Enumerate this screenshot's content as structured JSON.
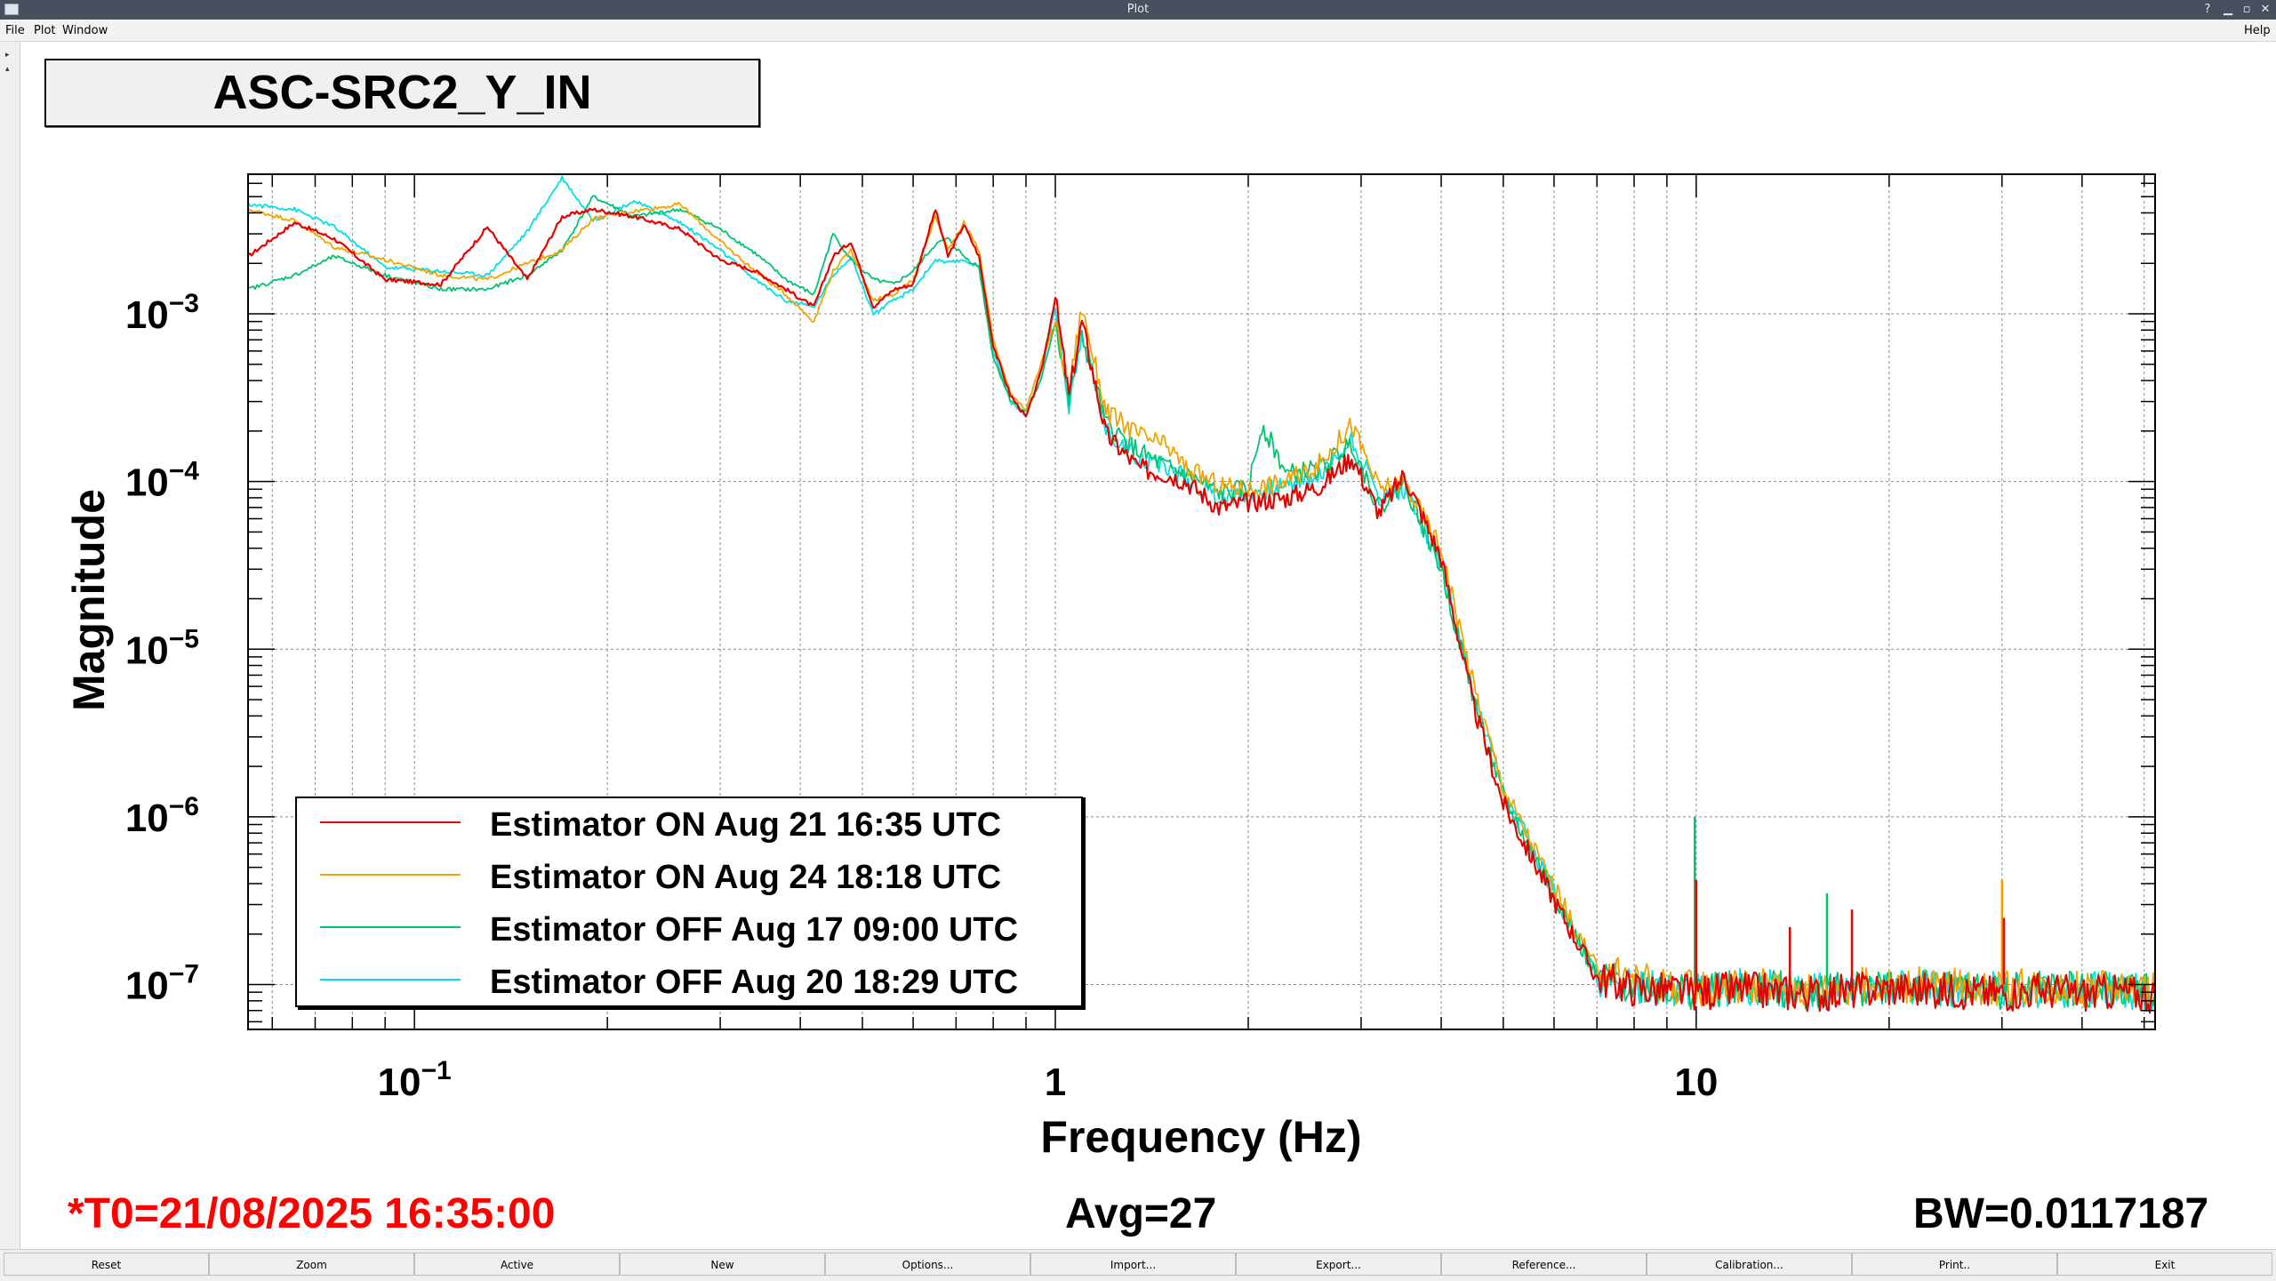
{
  "window": {
    "title": "Plot"
  },
  "menu": {
    "items": [
      "File",
      "Plot",
      "Window"
    ],
    "help": "Help"
  },
  "plot_title": "ASC-SRC2_Y_IN",
  "footer": {
    "t0": "*T0=21/08/2025 16:35:00",
    "avg": "Avg=27",
    "bw": "BW=0.0117187"
  },
  "buttons": [
    "Reset",
    "Zoom",
    "Active",
    "New",
    "Options...",
    "Import...",
    "Export...",
    "Reference...",
    "Calibration...",
    "Print..",
    "Exit"
  ],
  "colors": {
    "titlebar": "#46505e",
    "t0": "#ff0000",
    "red": "#e80000",
    "orange": "#f0a400",
    "green": "#00c470",
    "cyan": "#00e0e6"
  },
  "chart_data": {
    "type": "line",
    "xlabel": "Frequency (Hz)",
    "ylabel": "Magnitude",
    "xscale": "log",
    "yscale": "log",
    "xlim": [
      0.055,
      52
    ],
    "ylim": [
      5.4e-08,
      0.0068
    ],
    "x_ticks": [
      {
        "value": 0.1,
        "label": "10",
        "sup": "−1"
      },
      {
        "value": 1,
        "label": "1",
        "sup": ""
      },
      {
        "value": 10,
        "label": "10",
        "sup": ""
      }
    ],
    "y_ticks": [
      {
        "value": 0.001,
        "label": "10",
        "sup": "−3"
      },
      {
        "value": 0.0001,
        "label": "10",
        "sup": "−4"
      },
      {
        "value": 1e-05,
        "label": "10",
        "sup": "−5"
      },
      {
        "value": 1e-06,
        "label": "10",
        "sup": "−6"
      },
      {
        "value": 1e-07,
        "label": "10",
        "sup": "−7"
      }
    ],
    "grid": true,
    "legend": "lower-left",
    "series": [
      {
        "name": "Estimator ON Aug 21 16:35 UTC",
        "color": "#e80000",
        "x": [
          0.055,
          0.065,
          0.075,
          0.09,
          0.11,
          0.13,
          0.15,
          0.17,
          0.19,
          0.22,
          0.26,
          0.3,
          0.34,
          0.38,
          0.42,
          0.45,
          0.48,
          0.52,
          0.56,
          0.6,
          0.65,
          0.68,
          0.72,
          0.76,
          0.8,
          0.85,
          0.9,
          0.95,
          1.0,
          1.05,
          1.1,
          1.2,
          1.35,
          1.5,
          1.6,
          1.8,
          2.0,
          2.3,
          2.6,
          2.9,
          3.2,
          3.5,
          4.0,
          4.5,
          5.0,
          6.0,
          7.0,
          8.0,
          9.0,
          10,
          12,
          15,
          20,
          25,
          30,
          35,
          40,
          45,
          52
        ],
        "y": [
          0.0022,
          0.0035,
          0.0028,
          0.0016,
          0.0015,
          0.0033,
          0.0016,
          0.0038,
          0.0042,
          0.0038,
          0.0032,
          0.0021,
          0.0018,
          0.0014,
          0.0011,
          0.0022,
          0.0027,
          0.0011,
          0.0014,
          0.0015,
          0.0042,
          0.0022,
          0.0034,
          0.0022,
          0.00065,
          0.00033,
          0.00024,
          0.00045,
          0.00125,
          0.00032,
          0.0009,
          0.00019,
          0.00012,
          0.00011,
          0.0001,
          7e-05,
          7.5e-05,
          8e-05,
          9.5e-05,
          0.00014,
          6.5e-05,
          0.00011,
          3.5e-05,
          4.5e-06,
          1.2e-06,
          3.2e-07,
          1.1e-07,
          9.5e-08,
          9.2e-08,
          9e-08,
          9.3e-08,
          8.8e-08,
          9.5e-08,
          9.2e-08,
          8.9e-08,
          9.3e-08,
          8.8e-08,
          9.1e-08,
          8.6e-08
        ]
      },
      {
        "name": "Estimator ON Aug 24 18:18 UTC",
        "color": "#f0a400",
        "x": [
          0.055,
          0.065,
          0.075,
          0.09,
          0.11,
          0.13,
          0.15,
          0.17,
          0.19,
          0.22,
          0.26,
          0.3,
          0.34,
          0.38,
          0.42,
          0.45,
          0.48,
          0.52,
          0.56,
          0.6,
          0.65,
          0.68,
          0.72,
          0.76,
          0.8,
          0.85,
          0.9,
          0.95,
          1.0,
          1.05,
          1.1,
          1.2,
          1.35,
          1.5,
          1.6,
          1.8,
          2.0,
          2.3,
          2.6,
          2.9,
          3.2,
          3.5,
          4.0,
          4.5,
          5.0,
          6.0,
          7.0,
          8.0,
          9.0,
          10,
          12,
          15,
          20,
          25,
          30,
          35,
          40,
          45,
          52
        ],
        "y": [
          0.0042,
          0.0036,
          0.0025,
          0.0021,
          0.0017,
          0.0016,
          0.002,
          0.0024,
          0.0037,
          0.0041,
          0.0045,
          0.0027,
          0.0018,
          0.0013,
          0.0009,
          0.0018,
          0.0024,
          0.0012,
          0.0013,
          0.0016,
          0.0038,
          0.0024,
          0.0035,
          0.0024,
          0.0007,
          0.00034,
          0.00027,
          0.0005,
          0.0009,
          0.00035,
          0.0011,
          0.00026,
          0.00019,
          0.00016,
          0.00012,
          9.5e-05,
          9e-05,
          0.0001,
          0.00013,
          0.00022,
          9e-05,
          0.0001,
          4e-05,
          6e-06,
          1.5e-06,
          3.8e-07,
          1.2e-07,
          1.1e-07,
          1e-07,
          9.5e-08,
          1e-07,
          9.5e-08,
          1e-07,
          9.8e-08,
          9.5e-08,
          9.9e-08,
          9.4e-08,
          9.7e-08,
          9.2e-08
        ]
      },
      {
        "name": "Estimator OFF Aug 17 09:00 UTC",
        "color": "#00c470",
        "x": [
          0.055,
          0.065,
          0.075,
          0.09,
          0.11,
          0.13,
          0.15,
          0.17,
          0.19,
          0.22,
          0.26,
          0.3,
          0.34,
          0.38,
          0.42,
          0.45,
          0.48,
          0.52,
          0.56,
          0.6,
          0.65,
          0.68,
          0.72,
          0.76,
          0.8,
          0.85,
          0.9,
          0.95,
          1.0,
          1.05,
          1.1,
          1.2,
          1.35,
          1.5,
          1.6,
          1.8,
          2.0,
          2.1,
          2.3,
          2.6,
          2.9,
          3.2,
          3.5,
          4.0,
          4.5,
          5.0,
          6.0,
          7.0,
          8.0,
          9.0,
          10,
          12,
          15,
          20,
          25,
          30,
          35,
          40,
          45,
          52
        ],
        "y": [
          0.0014,
          0.0017,
          0.0022,
          0.0017,
          0.0014,
          0.0014,
          0.0017,
          0.0024,
          0.005,
          0.0038,
          0.0042,
          0.0032,
          0.0023,
          0.0016,
          0.0013,
          0.003,
          0.0021,
          0.0016,
          0.0015,
          0.0018,
          0.0026,
          0.0028,
          0.0022,
          0.0019,
          0.00055,
          0.00031,
          0.00026,
          0.0004,
          0.0009,
          0.0003,
          0.00075,
          0.00022,
          0.00015,
          0.00012,
          0.00011,
          8.5e-05,
          9e-05,
          0.00022,
          0.00011,
          0.00012,
          0.00017,
          7e-05,
          0.0001,
          3e-05,
          5e-06,
          1.3e-06,
          3.5e-07,
          1.1e-07,
          1e-07,
          9.5e-08,
          9e-08,
          9.6e-08,
          9.2e-08,
          9.7e-08,
          9.4e-08,
          9e-08,
          9.5e-08,
          9.2e-08,
          9.5e-08,
          9e-08
        ]
      },
      {
        "name": "Estimator OFF Aug 20 18:29 UTC",
        "color": "#00e0e6",
        "x": [
          0.055,
          0.065,
          0.075,
          0.09,
          0.11,
          0.13,
          0.15,
          0.17,
          0.19,
          0.22,
          0.26,
          0.3,
          0.34,
          0.38,
          0.42,
          0.45,
          0.48,
          0.52,
          0.56,
          0.6,
          0.65,
          0.68,
          0.72,
          0.76,
          0.8,
          0.85,
          0.9,
          0.95,
          1.0,
          1.05,
          1.1,
          1.2,
          1.35,
          1.5,
          1.6,
          1.8,
          2.0,
          2.3,
          2.6,
          2.9,
          3.2,
          3.5,
          4.0,
          4.5,
          5.0,
          6.0,
          7.0,
          8.0,
          9.0,
          10,
          12,
          15,
          20,
          25,
          30,
          35,
          40,
          45,
          52
        ],
        "y": [
          0.0045,
          0.0042,
          0.0033,
          0.0019,
          0.0018,
          0.0017,
          0.0031,
          0.0065,
          0.0036,
          0.0047,
          0.0035,
          0.0024,
          0.0016,
          0.0012,
          0.0011,
          0.0017,
          0.0022,
          0.001,
          0.0012,
          0.0014,
          0.0021,
          0.002,
          0.0021,
          0.0019,
          0.0006,
          0.0003,
          0.00025,
          0.00045,
          0.0011,
          0.00028,
          0.0008,
          0.0002,
          0.00014,
          0.00012,
          0.000105,
          8e-05,
          8.5e-05,
          9.5e-05,
          0.00011,
          0.00018,
          8e-05,
          9e-05,
          3.2e-05,
          5.2e-06,
          1.4e-06,
          3.6e-07,
          1.1e-07,
          9.8e-08,
          9.4e-08,
          9.3e-08,
          9.7e-08,
          9.2e-08,
          9.7e-08,
          9.3e-08,
          9.5e-08,
          9e-08,
          9.6e-08,
          9.2e-08,
          8.9e-08
        ]
      }
    ],
    "spikes": [
      {
        "x": 9.95,
        "y": 1e-07,
        "peak": 1e-06,
        "color": "#00c470"
      },
      {
        "x": 10.0,
        "y": 1e-07,
        "peak": 4.2e-07,
        "color": "#e80000"
      },
      {
        "x": 14.0,
        "y": 1e-07,
        "peak": 2.2e-07,
        "color": "#e80000"
      },
      {
        "x": 16.0,
        "y": 1e-07,
        "peak": 3.5e-07,
        "color": "#00c470"
      },
      {
        "x": 17.5,
        "y": 1e-07,
        "peak": 2.8e-07,
        "color": "#e80000"
      },
      {
        "x": 30.0,
        "y": 1e-07,
        "peak": 4.2e-07,
        "color": "#f0a400"
      },
      {
        "x": 30.2,
        "y": 1e-07,
        "peak": 2.5e-07,
        "color": "#e80000"
      }
    ]
  }
}
